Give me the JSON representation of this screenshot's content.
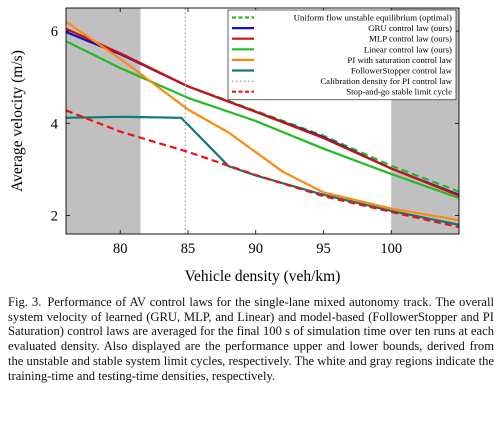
{
  "chart_data": {
    "type": "line",
    "xlabel": "Vehicle density (veh/km)",
    "ylabel": "Average velocity (m/s)",
    "xlim": [
      76,
      105
    ],
    "ylim": [
      1.6,
      6.5
    ],
    "xticks": [
      80,
      85,
      90,
      95,
      100
    ],
    "yticks": [
      2,
      4,
      6
    ],
    "grid": false,
    "legend_position": "top-right",
    "shaded_regions": [
      {
        "x": [
          76,
          81.5
        ],
        "color": "#c0c0c0"
      },
      {
        "x": [
          100,
          105
        ],
        "color": "#c0c0c0"
      }
    ],
    "series": [
      {
        "name": "Uniform flow unstable equilibrium (optimal)",
        "color": "#22bb22",
        "dash": "dashed",
        "x": [
          76,
          80,
          85,
          90,
          95,
          100,
          105
        ],
        "y": [
          5.98,
          5.5,
          4.8,
          4.27,
          3.73,
          3.08,
          2.52
        ]
      },
      {
        "name": "GRU control law (ours)",
        "color": "#1010cc",
        "dash": "solid",
        "x": [
          76,
          80,
          85,
          90,
          95,
          100,
          105
        ],
        "y": [
          5.98,
          5.5,
          4.8,
          4.25,
          3.7,
          3.02,
          2.45
        ]
      },
      {
        "name": "MLP control law (ours)",
        "color": "#cc1111",
        "dash": "solid",
        "x": [
          76,
          80,
          85,
          90,
          95,
          100,
          105
        ],
        "y": [
          6.05,
          5.52,
          4.8,
          4.25,
          3.68,
          3.02,
          2.43
        ]
      },
      {
        "name": "Linear control law (ours)",
        "color": "#22bb22",
        "dash": "solid",
        "x": [
          76,
          80,
          85,
          90,
          95,
          100,
          105
        ],
        "y": [
          5.78,
          5.2,
          4.55,
          4.05,
          3.45,
          2.9,
          2.38
        ]
      },
      {
        "name": "PI with saturation control law",
        "color": "#ff8811",
        "dash": "solid",
        "x": [
          76,
          80,
          85,
          88,
          92,
          95,
          100,
          105
        ],
        "y": [
          6.2,
          5.4,
          4.3,
          3.8,
          2.95,
          2.5,
          2.15,
          1.9
        ]
      },
      {
        "name": "FollowerStopper control law",
        "color": "#117777",
        "dash": "solid",
        "x": [
          76,
          80,
          84.5,
          88,
          90,
          95,
          100,
          105
        ],
        "y": [
          4.12,
          4.14,
          4.12,
          3.07,
          2.87,
          2.45,
          2.1,
          1.8
        ]
      },
      {
        "name": "Calibration density for PI control law",
        "color": "#999999",
        "dash": "dotted",
        "x": [
          84.8,
          84.8
        ],
        "y": [
          1.6,
          6.5
        ]
      },
      {
        "name": "Stop-and-go stable limit cycle",
        "color": "#ee1111",
        "dash": "dashed",
        "x": [
          76,
          80,
          85,
          90,
          95,
          100,
          105
        ],
        "y": [
          4.28,
          3.82,
          3.38,
          2.88,
          2.42,
          2.08,
          1.75
        ]
      }
    ]
  },
  "caption": {
    "label": "Fig. 3.",
    "text": "Performance of AV control laws for the single-lane mixed autonomy track. The overall system velocity of learned (GRU, MLP, and Linear) and model-based (FollowerStopper and PI Saturation) control laws are averaged for the final 100 s of simulation time over ten runs at each evaluated density. Also displayed are the performance upper and lower bounds, derived from the unstable and stable system limit cycles, respectively. The white and gray regions indicate the training-time and testing-time densities, respectively."
  }
}
